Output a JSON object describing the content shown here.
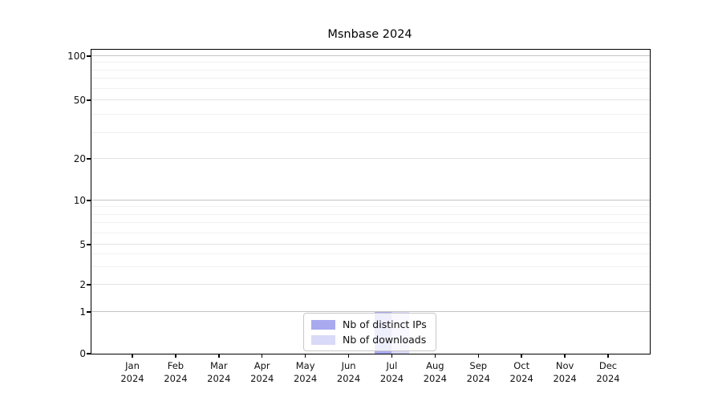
{
  "chart_data": {
    "type": "bar",
    "title": "Msnbase 2024",
    "categories": [
      "Jan 2024",
      "Feb 2024",
      "Mar 2024",
      "Apr 2024",
      "May 2024",
      "Jun 2024",
      "Jul 2024",
      "Aug 2024",
      "Sep 2024",
      "Oct 2024",
      "Nov 2024",
      "Dec 2024"
    ],
    "series": [
      {
        "name": "Nb of distinct IPs",
        "color": "#a9a9f0",
        "values": [
          0,
          0,
          0,
          0,
          0,
          0,
          1,
          0,
          0,
          0,
          0,
          0
        ]
      },
      {
        "name": "Nb of downloads",
        "color": "#d9d9f8",
        "values": [
          0,
          0,
          0,
          0,
          0,
          0,
          1,
          0,
          0,
          0,
          0,
          0
        ]
      }
    ],
    "xlabel": "",
    "ylabel": "",
    "y_scale": "log-like (0,1,2,5,10,20,50,100)",
    "y_ticks": [
      100,
      50,
      20,
      10,
      5,
      2,
      1,
      0
    ],
    "y_minor_ticks": [
      3,
      4,
      6,
      7,
      8,
      9,
      30,
      40,
      60,
      70,
      80,
      90
    ],
    "ylim": [
      0,
      110
    ],
    "grid": true,
    "legend_position": "bottom-center"
  },
  "colors": {
    "grid_decade": "#c4c4c4",
    "grid_mid": "#e3e3e3",
    "grid_minor": "#f0f0f0",
    "axis": "#000000",
    "background": "#ffffff"
  }
}
